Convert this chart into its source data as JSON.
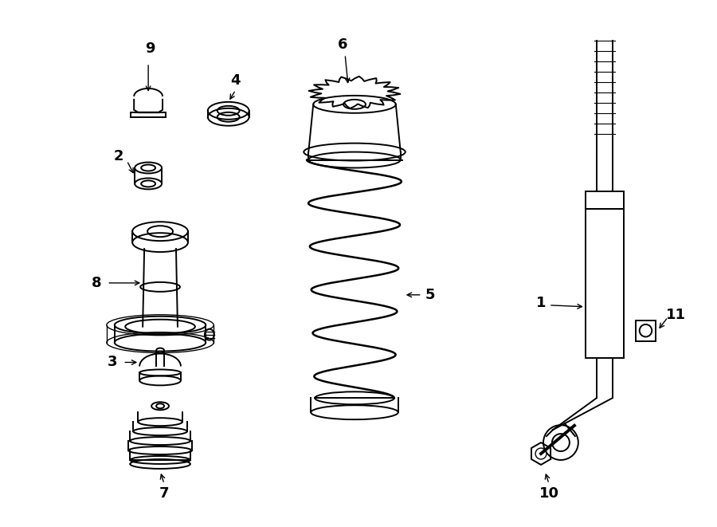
{
  "background_color": "#ffffff",
  "line_color": "#000000",
  "figsize": [
    9.0,
    6.61
  ],
  "dpi": 100
}
